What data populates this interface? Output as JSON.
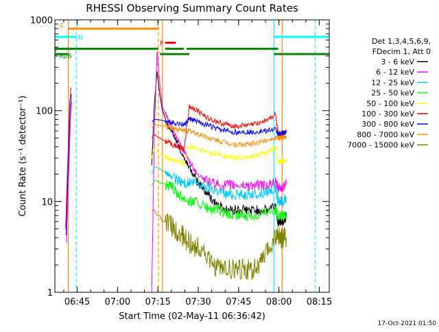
{
  "chart_data": {
    "type": "line",
    "title": "RHESSI Observing Summary Count Rates",
    "xlabel": "Start Time (02-May-11 06:36:42)",
    "ylabel": "Count Rate (s⁻¹ detector⁻¹)",
    "y_scale": "log",
    "ylim": [
      1,
      1000
    ],
    "xlim_minutes": [
      0,
      102
    ],
    "x_ticks": [
      {
        "label": "06:45",
        "minutes": 8.3
      },
      {
        "label": "07:00",
        "minutes": 23.3
      },
      {
        "label": "07:15",
        "minutes": 38.3
      },
      {
        "label": "07:30",
        "minutes": 53.3
      },
      {
        "label": "07:45",
        "minutes": 68.3
      },
      {
        "label": "08:00",
        "minutes": 83.3
      },
      {
        "label": "08:15",
        "minutes": 98.3
      }
    ],
    "y_ticks": [
      {
        "label": "1",
        "value": 1
      },
      {
        "label": "10",
        "value": 10
      },
      {
        "label": "100",
        "value": 100
      },
      {
        "label": "1000",
        "value": 1000
      }
    ],
    "legend_header": [
      "Det 1,3,4,5,6,9,",
      "FDecim 1, Att 0"
    ],
    "series": [
      {
        "name": "3 - 6 keV",
        "color": "#000000",
        "x": [
          36,
          37,
          38,
          39,
          40,
          42,
          44,
          46,
          48,
          50,
          52,
          55,
          58,
          61,
          64,
          67,
          70,
          73,
          76,
          79,
          82,
          83,
          84,
          85,
          86
        ],
        "values": [
          25,
          120,
          270,
          150,
          100,
          70,
          55,
          40,
          30,
          24,
          18,
          14,
          11,
          9,
          8,
          8,
          8,
          8,
          8,
          8,
          9,
          6,
          6,
          6,
          7
        ]
      },
      {
        "name": "6 - 12 keV",
        "color": "#ff00ff",
        "x": [
          36,
          37,
          38,
          39,
          40,
          42,
          44,
          46,
          48,
          50,
          52,
          55,
          58,
          61,
          64,
          67,
          70,
          73,
          76,
          79,
          82,
          83,
          84,
          85,
          86
        ],
        "values": [
          1,
          60,
          450,
          200,
          110,
          80,
          60,
          45,
          35,
          28,
          22,
          18,
          16,
          15,
          15,
          15,
          15,
          15,
          15,
          15,
          16,
          14,
          14,
          15,
          15
        ]
      },
      {
        "name": "12 - 25 keV",
        "color": "#00c8ff",
        "x": [
          36,
          37,
          38,
          39,
          40,
          42,
          44,
          46,
          48,
          50,
          52,
          55,
          58,
          61,
          64,
          67,
          70,
          73,
          76,
          79,
          82,
          83,
          84,
          85,
          86
        ],
        "values": [
          20,
          24,
          24,
          23,
          22,
          20,
          18,
          17,
          16,
          16,
          16,
          15,
          14,
          13,
          12,
          12,
          12,
          12,
          12,
          13,
          14,
          10,
          10,
          10,
          11
        ]
      },
      {
        "name": "25 - 50 keV",
        "color": "#00ff00",
        "x": [
          36,
          37,
          38,
          39,
          40,
          42,
          44,
          46,
          48,
          50,
          52,
          55,
          58,
          61,
          64,
          67,
          70,
          73,
          76,
          79,
          82,
          83,
          84,
          85,
          86
        ],
        "values": [
          15,
          17,
          17,
          16,
          16,
          15,
          14,
          12,
          11,
          10,
          10,
          9,
          8,
          8,
          7,
          7,
          7,
          7,
          7,
          8,
          8,
          7,
          7,
          7,
          7
        ]
      },
      {
        "name": "50 - 100 keV",
        "color": "#ffff00",
        "x": [
          36,
          37,
          38,
          39,
          40,
          42,
          44,
          46,
          48,
          50,
          52,
          55,
          58,
          61,
          64,
          67,
          70,
          73,
          76,
          79,
          82,
          83,
          84,
          85,
          86
        ],
        "values": [
          30,
          38,
          36,
          34,
          32,
          30,
          29,
          27,
          26,
          40,
          39,
          36,
          34,
          33,
          31,
          30,
          30,
          31,
          33,
          35,
          40,
          27,
          27,
          28,
          28
        ]
      },
      {
        "name": "100 - 300 keV",
        "color": "#ff0000",
        "x": [
          36,
          37,
          38,
          39,
          40,
          42,
          44,
          46,
          48,
          50,
          52,
          55,
          58,
          61,
          64,
          67,
          70,
          73,
          76,
          79,
          82,
          83,
          84,
          85,
          86
        ],
        "values": [
          50,
          55,
          52,
          50,
          48,
          45,
          42,
          40,
          38,
          110,
          105,
          90,
          80,
          74,
          70,
          68,
          68,
          70,
          74,
          80,
          90,
          55,
          55,
          56,
          58
        ]
      },
      {
        "name": "300 - 800 keV",
        "color": "#0000ff",
        "x": [
          36,
          37,
          38,
          39,
          40,
          42,
          44,
          46,
          48,
          50,
          52,
          55,
          58,
          61,
          64,
          67,
          70,
          73,
          76,
          79,
          82,
          83,
          84,
          85,
          86
        ],
        "values": [
          75,
          80,
          80,
          79,
          78,
          76,
          74,
          72,
          70,
          80,
          78,
          72,
          67,
          62,
          60,
          58,
          58,
          58,
          59,
          60,
          62,
          55,
          56,
          57,
          58
        ]
      },
      {
        "name": "800 - 7000 keV",
        "color": "#ff8c00",
        "x": [
          36,
          37,
          38,
          39,
          40,
          42,
          44,
          46,
          48,
          50,
          52,
          55,
          58,
          61,
          64,
          67,
          70,
          73,
          76,
          79,
          82,
          83,
          84,
          85,
          86
        ],
        "values": [
          65,
          70,
          70,
          69,
          68,
          66,
          64,
          62,
          60,
          60,
          57,
          53,
          49,
          46,
          44,
          42,
          42,
          43,
          45,
          48,
          50,
          50,
          50,
          51,
          52
        ]
      },
      {
        "name": "7000 - 15000 keV",
        "color": "#808000",
        "x": [
          36,
          37,
          38,
          39,
          40,
          42,
          44,
          46,
          48,
          50,
          52,
          55,
          58,
          61,
          64,
          67,
          70,
          73,
          76,
          79,
          82,
          83,
          84,
          85,
          86
        ],
        "values": [
          8,
          8,
          7,
          7,
          6,
          6,
          5,
          4.5,
          4,
          3.5,
          3.2,
          3,
          2,
          1.8,
          1.8,
          1.8,
          1.8,
          1.8,
          1.9,
          2.8,
          4,
          4,
          4,
          4,
          4
        ]
      }
    ],
    "early_segment": {
      "x": [
        4,
        4.5,
        5,
        5.5,
        6
      ],
      "values": [
        5,
        15,
        40,
        120,
        180
      ]
    },
    "flags": {
      "S": {
        "label": "S",
        "color": "#ff8c00",
        "start": 5,
        "end": 38.5,
        "value": 800
      },
      "N": {
        "label": "N",
        "color": "#00ffff",
        "segments": [
          [
            0,
            8
          ],
          [
            81.5,
            102
          ]
        ],
        "value": 650
      },
      "F": {
        "label": "F",
        "color": "#ff0000",
        "start": 41,
        "end": 45,
        "value": 560
      },
      "RD8": {
        "label": "RD8",
        "color": "#008000",
        "segments": [
          [
            0,
            38.5
          ],
          [
            41,
            48
          ],
          [
            49,
            83
          ]
        ],
        "value": 480
      },
      "RD6": {
        "label": "RD6",
        "color": "#008000",
        "segments": [
          [
            0,
            5
          ],
          [
            39,
            50
          ],
          [
            81.5,
            102
          ]
        ],
        "value": 420
      }
    },
    "vertical_lines": [
      {
        "minutes": 0,
        "color": "#00ffff",
        "style": "solid"
      },
      {
        "minutes": 5.0,
        "color": "#ff8c00",
        "style": "solid"
      },
      {
        "minutes": 8.0,
        "color": "#00ffff",
        "style": "dashed"
      },
      {
        "minutes": 38.5,
        "color": "#ff8c00",
        "style": "dashed"
      },
      {
        "minutes": 40.0,
        "color": "#ff8c00",
        "style": "solid"
      },
      {
        "minutes": 81.5,
        "color": "#00ffff",
        "style": "solid"
      },
      {
        "minutes": 84.5,
        "color": "#ff8c00",
        "style": "solid"
      },
      {
        "minutes": 96.8,
        "color": "#00ffff",
        "style": "dashed"
      }
    ],
    "footer_timestamp": "17-Oct-2021 01:50"
  }
}
